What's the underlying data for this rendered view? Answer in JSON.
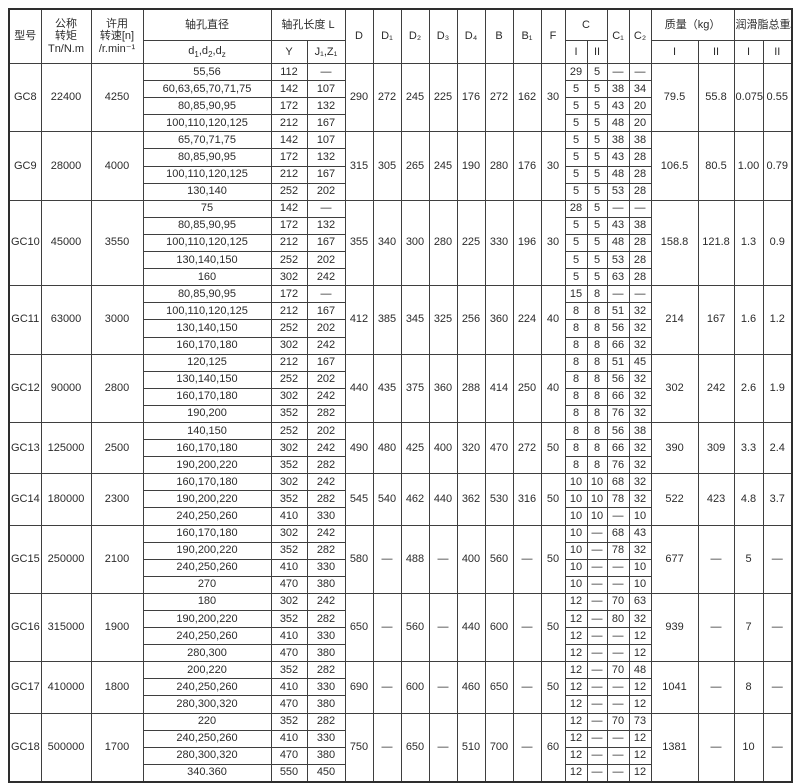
{
  "table": {
    "headers": {
      "model": "型号",
      "torque_l1": "公称",
      "torque_l2": "转矩",
      "torque_l3": "Tn/N.m",
      "speed_l1": "许用",
      "speed_l2": "转速[n]",
      "speed_l3": "/r.min⁻¹",
      "bore_dia": "轴孔直径",
      "bore_dia_sub_html": "d<sub>1</sub>,d<sub>2</sub>,d<sub>z</sub>",
      "bore_len": "轴孔长度 L",
      "bore_len_y": "Y",
      "bore_len_jz": "J₁,Z₁",
      "d": "D",
      "d1": "D₁",
      "d2": "D₂",
      "d3": "D₃",
      "d4": "D₄",
      "b": "B",
      "b1": "B₁",
      "f": "F",
      "c": "C",
      "c_i": "I",
      "c_ii": "II",
      "c1": "C₁",
      "c2": "C₂",
      "mass": "质量（kg）",
      "mass_i": "I",
      "mass_ii": "II",
      "grease": "润滑脂总重/kg",
      "grease_i": "I",
      "grease_ii": "II"
    },
    "groups": [
      {
        "model": "GC8",
        "torque": "22400",
        "speed": "4250",
        "D": "290",
        "D1": "272",
        "D2": "245",
        "D3": "225",
        "D4": "176",
        "B": "272",
        "B1": "162",
        "F": "30",
        "mass_i": "79.5",
        "mass_ii": "55.8",
        "grease_i": "0.075",
        "grease_ii": "0.55",
        "rows": [
          {
            "d": "55,56",
            "y": "112",
            "jz": "—",
            "ci": "29",
            "cii": "5",
            "c1": "—",
            "c2": "—"
          },
          {
            "d": "60,63,65,70,71,75",
            "y": "142",
            "jz": "107",
            "ci": "5",
            "cii": "5",
            "c1": "38",
            "c2": "34"
          },
          {
            "d": "80,85,90,95",
            "y": "172",
            "jz": "132",
            "ci": "5",
            "cii": "5",
            "c1": "43",
            "c2": "20"
          },
          {
            "d": "100,110,120,125",
            "y": "212",
            "jz": "167",
            "ci": "5",
            "cii": "5",
            "c1": "48",
            "c2": "20"
          }
        ]
      },
      {
        "model": "GC9",
        "torque": "28000",
        "speed": "4000",
        "D": "315",
        "D1": "305",
        "D2": "265",
        "D3": "245",
        "D4": "190",
        "B": "280",
        "B1": "176",
        "F": "30",
        "mass_i": "106.5",
        "mass_ii": "80.5",
        "grease_i": "1.00",
        "grease_ii": "0.79",
        "rows": [
          {
            "d": "65,70,71,75",
            "y": "142",
            "jz": "107",
            "ci": "5",
            "cii": "5",
            "c1": "38",
            "c2": "38"
          },
          {
            "d": "80,85,90,95",
            "y": "172",
            "jz": "132",
            "ci": "5",
            "cii": "5",
            "c1": "43",
            "c2": "28"
          },
          {
            "d": "100,110,120,125",
            "y": "212",
            "jz": "167",
            "ci": "5",
            "cii": "5",
            "c1": "48",
            "c2": "28"
          },
          {
            "d": "130,140",
            "y": "252",
            "jz": "202",
            "ci": "5",
            "cii": "5",
            "c1": "53",
            "c2": "28"
          }
        ]
      },
      {
        "model": "GC10",
        "torque": "45000",
        "speed": "3550",
        "D": "355",
        "D1": "340",
        "D2": "300",
        "D3": "280",
        "D4": "225",
        "B": "330",
        "B1": "196",
        "F": "30",
        "mass_i": "158.8",
        "mass_ii": "121.8",
        "grease_i": "1.3",
        "grease_ii": "0.9",
        "rows": [
          {
            "d": "75",
            "y": "142",
            "jz": "—",
            "ci": "28",
            "cii": "5",
            "c1": "—",
            "c2": "—"
          },
          {
            "d": "80,85,90,95",
            "y": "172",
            "jz": "132",
            "ci": "5",
            "cii": "5",
            "c1": "43",
            "c2": "38"
          },
          {
            "d": "100,110,120,125",
            "y": "212",
            "jz": "167",
            "ci": "5",
            "cii": "5",
            "c1": "48",
            "c2": "28"
          },
          {
            "d": "130,140,150",
            "y": "252",
            "jz": "202",
            "ci": "5",
            "cii": "5",
            "c1": "53",
            "c2": "28"
          },
          {
            "d": "160",
            "y": "302",
            "jz": "242",
            "ci": "5",
            "cii": "5",
            "c1": "63",
            "c2": "28"
          }
        ]
      },
      {
        "model": "GC11",
        "torque": "63000",
        "speed": "3000",
        "D": "412",
        "D1": "385",
        "D2": "345",
        "D3": "325",
        "D4": "256",
        "B": "360",
        "B1": "224",
        "F": "40",
        "mass_i": "214",
        "mass_ii": "167",
        "grease_i": "1.6",
        "grease_ii": "1.2",
        "rows": [
          {
            "d": "80,85,90,95",
            "y": "172",
            "jz": "—",
            "ci": "15",
            "cii": "8",
            "c1": "—",
            "c2": "—"
          },
          {
            "d": "100,110,120,125",
            "y": "212",
            "jz": "167",
            "ci": "8",
            "cii": "8",
            "c1": "51",
            "c2": "32"
          },
          {
            "d": "130,140,150",
            "y": "252",
            "jz": "202",
            "ci": "8",
            "cii": "8",
            "c1": "56",
            "c2": "32"
          },
          {
            "d": "160,170,180",
            "y": "302",
            "jz": "242",
            "ci": "8",
            "cii": "8",
            "c1": "66",
            "c2": "32"
          }
        ]
      },
      {
        "model": "GC12",
        "torque": "90000",
        "speed": "2800",
        "D": "440",
        "D1": "435",
        "D2": "375",
        "D3": "360",
        "D4": "288",
        "B": "414",
        "B1": "250",
        "F": "40",
        "mass_i": "302",
        "mass_ii": "242",
        "grease_i": "2.6",
        "grease_ii": "1.9",
        "rows": [
          {
            "d": "120,125",
            "y": "212",
            "jz": "167",
            "ci": "8",
            "cii": "8",
            "c1": "51",
            "c2": "45"
          },
          {
            "d": "130,140,150",
            "y": "252",
            "jz": "202",
            "ci": "8",
            "cii": "8",
            "c1": "56",
            "c2": "32"
          },
          {
            "d": "160,170,180",
            "y": "302",
            "jz": "242",
            "ci": "8",
            "cii": "8",
            "c1": "66",
            "c2": "32"
          },
          {
            "d": "190,200",
            "y": "352",
            "jz": "282",
            "ci": "8",
            "cii": "8",
            "c1": "76",
            "c2": "32"
          }
        ]
      },
      {
        "model": "GC13",
        "torque": "125000",
        "speed": "2500",
        "D": "490",
        "D1": "480",
        "D2": "425",
        "D3": "400",
        "D4": "320",
        "B": "470",
        "B1": "272",
        "F": "50",
        "mass_i": "390",
        "mass_ii": "309",
        "grease_i": "3.3",
        "grease_ii": "2.4",
        "rows": [
          {
            "d": "140,150",
            "y": "252",
            "jz": "202",
            "ci": "8",
            "cii": "8",
            "c1": "56",
            "c2": "38"
          },
          {
            "d": "160,170,180",
            "y": "302",
            "jz": "242",
            "ci": "8",
            "cii": "8",
            "c1": "66",
            "c2": "32"
          },
          {
            "d": "190,200,220",
            "y": "352",
            "jz": "282",
            "ci": "8",
            "cii": "8",
            "c1": "76",
            "c2": "32"
          }
        ]
      },
      {
        "model": "GC14",
        "torque": "180000",
        "speed": "2300",
        "D": "545",
        "D1": "540",
        "D2": "462",
        "D3": "440",
        "D4": "362",
        "B": "530",
        "B1": "316",
        "F": "50",
        "mass_i": "522",
        "mass_ii": "423",
        "grease_i": "4.8",
        "grease_ii": "3.7",
        "rows": [
          {
            "d": "160,170,180",
            "y": "302",
            "jz": "242",
            "ci": "10",
            "cii": "10",
            "c1": "68",
            "c2": "32"
          },
          {
            "d": "190,200,220",
            "y": "352",
            "jz": "282",
            "ci": "10",
            "cii": "10",
            "c1": "78",
            "c2": "32"
          },
          {
            "d": "240,250,260",
            "y": "410",
            "jz": "330",
            "ci": "10",
            "cii": "10",
            "c1": "—",
            "c2": "10"
          }
        ]
      },
      {
        "model": "GC15",
        "torque": "250000",
        "speed": "2100",
        "D": "580",
        "D1": "—",
        "D2": "488",
        "D3": "—",
        "D4": "400",
        "B": "560",
        "B1": "—",
        "F": "50",
        "mass_i": "677",
        "mass_ii": "—",
        "grease_i": "5",
        "grease_ii": "—",
        "rows": [
          {
            "d": "160,170,180",
            "y": "302",
            "jz": "242",
            "ci": "10",
            "cii": "—",
            "c1": "68",
            "c2": "43"
          },
          {
            "d": "190,200,220",
            "y": "352",
            "jz": "282",
            "ci": "10",
            "cii": "—",
            "c1": "78",
            "c2": "32"
          },
          {
            "d": "240,250,260",
            "y": "410",
            "jz": "330",
            "ci": "10",
            "cii": "—",
            "c1": "—",
            "c2": "10"
          },
          {
            "d": "270",
            "y": "470",
            "jz": "380",
            "ci": "10",
            "cii": "—",
            "c1": "—",
            "c2": "10"
          }
        ]
      },
      {
        "model": "GC16",
        "torque": "315000",
        "speed": "1900",
        "D": "650",
        "D1": "—",
        "D2": "560",
        "D3": "—",
        "D4": "440",
        "B": "600",
        "B1": "—",
        "F": "50",
        "mass_i": "939",
        "mass_ii": "—",
        "grease_i": "7",
        "grease_ii": "—",
        "rows": [
          {
            "d": "180",
            "y": "302",
            "jz": "242",
            "ci": "12",
            "cii": "—",
            "c1": "70",
            "c2": "63"
          },
          {
            "d": "190,200,220",
            "y": "352",
            "jz": "282",
            "ci": "12",
            "cii": "—",
            "c1": "80",
            "c2": "32"
          },
          {
            "d": "240,250,260",
            "y": "410",
            "jz": "330",
            "ci": "12",
            "cii": "—",
            "c1": "—",
            "c2": "12"
          },
          {
            "d": "280,300",
            "y": "470",
            "jz": "380",
            "ci": "12",
            "cii": "—",
            "c1": "—",
            "c2": "12"
          }
        ]
      },
      {
        "model": "GC17",
        "torque": "410000",
        "speed": "1800",
        "D": "690",
        "D1": "—",
        "D2": "600",
        "D3": "—",
        "D4": "460",
        "B": "650",
        "B1": "—",
        "F": "50",
        "mass_i": "1041",
        "mass_ii": "—",
        "grease_i": "8",
        "grease_ii": "—",
        "rows": [
          {
            "d": "200,220",
            "y": "352",
            "jz": "282",
            "ci": "12",
            "cii": "—",
            "c1": "70",
            "c2": "48"
          },
          {
            "d": "240,250,260",
            "y": "410",
            "jz": "330",
            "ci": "12",
            "cii": "—",
            "c1": "—",
            "c2": "12"
          },
          {
            "d": "280,300,320",
            "y": "470",
            "jz": "380",
            "ci": "12",
            "cii": "—",
            "c1": "—",
            "c2": "12"
          }
        ]
      },
      {
        "model": "GC18",
        "torque": "500000",
        "speed": "1700",
        "D": "750",
        "D1": "—",
        "D2": "650",
        "D3": "—",
        "D4": "510",
        "B": "700",
        "B1": "—",
        "F": "60",
        "mass_i": "1381",
        "mass_ii": "—",
        "grease_i": "10",
        "grease_ii": "—",
        "rows": [
          {
            "d": "220",
            "y": "352",
            "jz": "282",
            "ci": "12",
            "cii": "—",
            "c1": "70",
            "c2": "73"
          },
          {
            "d": "240,250,260",
            "y": "410",
            "jz": "330",
            "ci": "12",
            "cii": "—",
            "c1": "—",
            "c2": "12"
          },
          {
            "d": "280,300,320",
            "y": "470",
            "jz": "380",
            "ci": "12",
            "cii": "—",
            "c1": "—",
            "c2": "12"
          },
          {
            "d": "340.360",
            "y": "550",
            "jz": "450",
            "ci": "12",
            "cii": "—",
            "c1": "—",
            "c2": "12"
          }
        ]
      }
    ]
  }
}
